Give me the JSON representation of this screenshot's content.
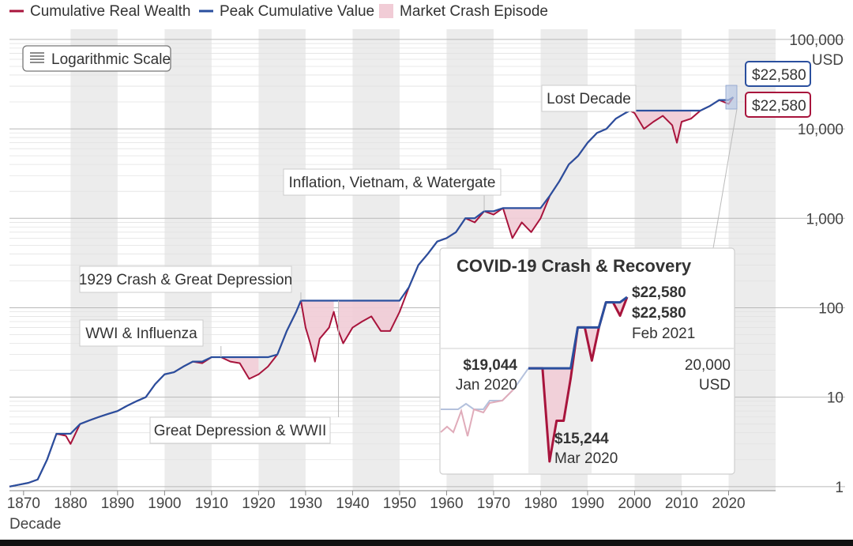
{
  "chart_data": {
    "type": "line",
    "title": "",
    "xlabel": "Decade",
    "ylabel": "",
    "y_unit_label": "USD",
    "y_scale": "log",
    "ylim": [
      0.9,
      130000
    ],
    "xlim": [
      1867,
      2030
    ],
    "scale_badge": "Logarithmic Scale",
    "legend": [
      {
        "name": "Cumulative Real Wealth",
        "color": "#a8143c",
        "kind": "line"
      },
      {
        "name": "Peak Cumulative Value",
        "color": "#2a4f9e",
        "kind": "line"
      },
      {
        "name": "Market Crash Episode",
        "color": "#f1ccd6",
        "kind": "swatch"
      }
    ],
    "legend_placement": "top-left",
    "x_ticks": [
      1870,
      1880,
      1890,
      1900,
      1910,
      1920,
      1930,
      1940,
      1950,
      1960,
      1970,
      1980,
      1990,
      2000,
      2010,
      2020
    ],
    "y_ticks": [
      {
        "value": 1,
        "label": "1"
      },
      {
        "value": 10,
        "label": "10"
      },
      {
        "value": 100,
        "label": "100"
      },
      {
        "value": 1000,
        "label": "1,000"
      },
      {
        "value": 10000,
        "label": "10,000"
      },
      {
        "value": 100000,
        "label": "100,000"
      }
    ],
    "series": [
      {
        "name": "Cumulative Real Wealth",
        "color": "#a8143c",
        "x": [
          1867,
          1869,
          1871,
          1873,
          1875,
          1877,
          1879,
          1880,
          1882,
          1884,
          1886,
          1888,
          1890,
          1892,
          1894,
          1896,
          1898,
          1900,
          1902,
          1904,
          1906,
          1908,
          1910,
          1912,
          1914,
          1916,
          1918,
          1920,
          1922,
          1924,
          1926,
          1928,
          1929,
          1930,
          1931,
          1932,
          1933,
          1935,
          1936,
          1937,
          1938,
          1940,
          1942,
          1944,
          1946,
          1948,
          1950,
          1952,
          1954,
          1956,
          1958,
          1960,
          1962,
          1964,
          1966,
          1968,
          1970,
          1972,
          1974,
          1976,
          1978,
          1980,
          1982,
          1984,
          1986,
          1988,
          1990,
          1992,
          1994,
          1996,
          1998,
          1999,
          2000,
          2002,
          2004,
          2006,
          2008,
          2009,
          2010,
          2012,
          2014,
          2016,
          2018,
          2020,
          2021
        ],
        "values": [
          1.0,
          1.05,
          1.1,
          1.2,
          2.0,
          3.9,
          3.7,
          3.0,
          5.0,
          5.5,
          6.0,
          6.5,
          7.0,
          8.0,
          9.0,
          10.0,
          14.0,
          18.0,
          19.0,
          22.0,
          25.0,
          24.0,
          28.0,
          28.0,
          25.0,
          24.0,
          16.0,
          18.0,
          22.0,
          30.0,
          55.0,
          90.0,
          120.0,
          60.0,
          40.0,
          25.0,
          45.0,
          60.0,
          90.0,
          55.0,
          40.0,
          60.0,
          70.0,
          80.0,
          55.0,
          55.0,
          90.0,
          170.0,
          300.0,
          400.0,
          550.0,
          600.0,
          700.0,
          1000.0,
          900.0,
          1200.0,
          1100.0,
          1300.0,
          600.0,
          900.0,
          700.0,
          1000.0,
          1800.0,
          2600.0,
          4000.0,
          5000.0,
          7000.0,
          9000.0,
          10000.0,
          13000.0,
          15000.0,
          16000.0,
          15000.0,
          10000.0,
          12000.0,
          14000.0,
          11000.0,
          7000.0,
          12000.0,
          13000.0,
          16000.0,
          18000.0,
          21000.0,
          19000.0,
          22580.0
        ]
      },
      {
        "name": "Peak Cumulative Value",
        "color": "#2a4f9e",
        "x": [
          1867,
          1869,
          1871,
          1873,
          1875,
          1877,
          1879,
          1880,
          1882,
          1884,
          1886,
          1888,
          1890,
          1892,
          1894,
          1896,
          1898,
          1900,
          1902,
          1904,
          1906,
          1908,
          1910,
          1912,
          1914,
          1916,
          1918,
          1920,
          1922,
          1924,
          1926,
          1928,
          1929,
          1930,
          1931,
          1932,
          1933,
          1935,
          1936,
          1937,
          1938,
          1940,
          1942,
          1944,
          1946,
          1948,
          1950,
          1952,
          1954,
          1956,
          1958,
          1960,
          1962,
          1964,
          1966,
          1968,
          1970,
          1972,
          1974,
          1976,
          1978,
          1980,
          1982,
          1984,
          1986,
          1988,
          1990,
          1992,
          1994,
          1996,
          1998,
          1999,
          2000,
          2002,
          2004,
          2006,
          2008,
          2009,
          2010,
          2012,
          2014,
          2016,
          2018,
          2020,
          2021
        ],
        "values": [
          1.0,
          1.05,
          1.1,
          1.2,
          2.0,
          3.9,
          3.9,
          3.9,
          5.0,
          5.5,
          6.0,
          6.5,
          7.0,
          8.0,
          9.0,
          10.0,
          14.0,
          18.0,
          19.0,
          22.0,
          25.0,
          25.0,
          28.0,
          28.0,
          28.0,
          28.0,
          28.0,
          28.0,
          28.0,
          30.0,
          55.0,
          90.0,
          120.0,
          120.0,
          120.0,
          120.0,
          120.0,
          120.0,
          120.0,
          120.0,
          120.0,
          120.0,
          120.0,
          120.0,
          120.0,
          120.0,
          120.0,
          170.0,
          300.0,
          400.0,
          550.0,
          600.0,
          700.0,
          1000.0,
          1000.0,
          1200.0,
          1200.0,
          1300.0,
          1300.0,
          1300.0,
          1300.0,
          1300.0,
          1800.0,
          2600.0,
          4000.0,
          5000.0,
          7000.0,
          9000.0,
          10000.0,
          13000.0,
          15000.0,
          16000.0,
          16000.0,
          16000.0,
          16000.0,
          16000.0,
          16000.0,
          16000.0,
          16000.0,
          16000.0,
          16000.0,
          18000.0,
          21000.0,
          21000.0,
          22580.0
        ]
      }
    ],
    "crash_episodes": [
      {
        "name": "WWI & Influenza",
        "start": 1906,
        "end": 1921
      },
      {
        "name": "1929 Crash & Great Depression",
        "start": 1929,
        "end": 1936
      },
      {
        "name": "Great Depression & WWII",
        "start": 1937,
        "end": 1950
      },
      {
        "name": "Inflation, Vietnam, & Watergate",
        "start": 1966,
        "end": 1983
      },
      {
        "name": "Lost Decade",
        "start": 2000,
        "end": 2013
      }
    ],
    "annotations": [
      {
        "text": "WWI & Influenza",
        "x": 1912,
        "y": 28
      },
      {
        "text": "1929 Crash & Great Depression",
        "x": 1929,
        "y": 120
      },
      {
        "text": "Great Depression & WWII",
        "x": 1937,
        "y": 120
      },
      {
        "text": "Inflation, Vietnam, & Watergate",
        "x": 1968,
        "y": 1200
      },
      {
        "text": "Lost Decade",
        "x": 1999,
        "y": 16000
      }
    ],
    "endpoint_labels": {
      "peak": "$22,580",
      "wealth": "$22,580"
    },
    "inset": {
      "title": "COVID-19 Crash & Recovery",
      "y_tick_label": "20,000",
      "y_unit_label": "USD",
      "points_wealth": [
        19044,
        19044,
        19044,
        15244,
        16800,
        16800,
        18600,
        21000,
        21000,
        19400,
        21000,
        22300,
        22300,
        21600,
        22580
      ],
      "points_peak": [
        19044,
        19044,
        19044,
        19044,
        19044,
        19044,
        19044,
        21000,
        21000,
        21000,
        21000,
        22300,
        22300,
        22300,
        22580
      ],
      "start": {
        "value": "$19,044",
        "date": "Jan 2020"
      },
      "trough": {
        "value": "$15,244",
        "date": "Mar 2020"
      },
      "end": {
        "peak_value": "$22,580",
        "wealth_value": "$22,580",
        "date": "Feb 2021"
      }
    }
  }
}
